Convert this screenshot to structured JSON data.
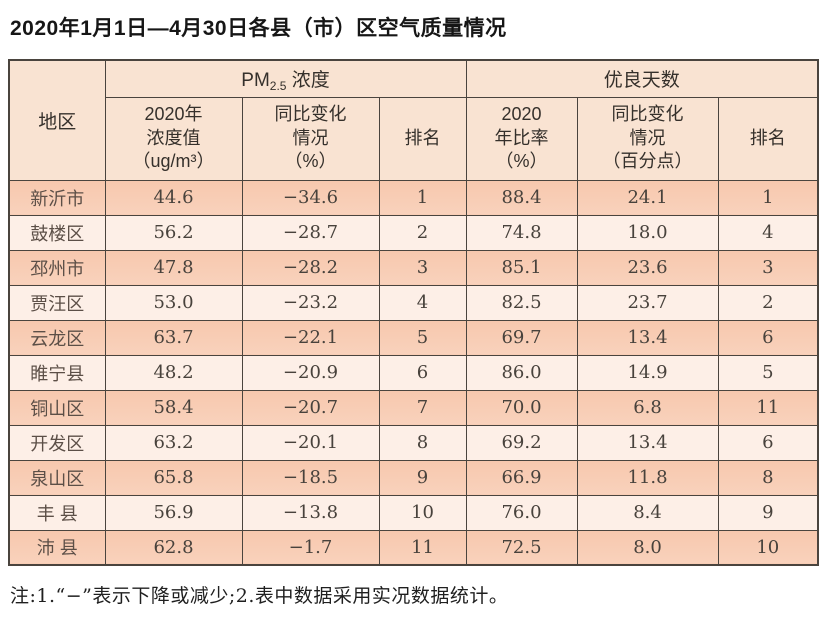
{
  "title": "2020年1月1日—4月30日各县（市）区空气质量情况",
  "colors": {
    "border_dark": "#4a443e",
    "header_bg": "#f9e3d2",
    "row_odd": "#f8ccb3",
    "row_even": "#fdefe7",
    "text_dark": "#48423c"
  },
  "table": {
    "region_header": "地区",
    "group_pm": {
      "prefix": "PM",
      "sub": "2.5",
      "suffix": " 浓度"
    },
    "group_good_days": "优良天数",
    "sub_headers": {
      "pm_value": "2020年\n浓度值\n（ug/m³）",
      "pm_change": "同比变化\n情况\n（%）",
      "pm_rank": "排名",
      "good_ratio": "2020\n年比率\n（%）",
      "good_change": "同比变化\n情况\n（百分点）",
      "good_rank": "排名"
    },
    "rows": [
      {
        "region": "新沂市",
        "pm": "44.6",
        "pm_change": "−34.6",
        "pm_rank": "1",
        "ratio": "88.4",
        "ratio_change": "24.1",
        "ratio_rank": "1"
      },
      {
        "region": "鼓楼区",
        "pm": "56.2",
        "pm_change": "−28.7",
        "pm_rank": "2",
        "ratio": "74.8",
        "ratio_change": "18.0",
        "ratio_rank": "4"
      },
      {
        "region": "邳州市",
        "pm": "47.8",
        "pm_change": "−28.2",
        "pm_rank": "3",
        "ratio": "85.1",
        "ratio_change": "23.6",
        "ratio_rank": "3"
      },
      {
        "region": "贾汪区",
        "pm": "53.0",
        "pm_change": "−23.2",
        "pm_rank": "4",
        "ratio": "82.5",
        "ratio_change": "23.7",
        "ratio_rank": "2"
      },
      {
        "region": "云龙区",
        "pm": "63.7",
        "pm_change": "−22.1",
        "pm_rank": "5",
        "ratio": "69.7",
        "ratio_change": "13.4",
        "ratio_rank": "6"
      },
      {
        "region": "睢宁县",
        "pm": "48.2",
        "pm_change": "−20.9",
        "pm_rank": "6",
        "ratio": "86.0",
        "ratio_change": "14.9",
        "ratio_rank": "5"
      },
      {
        "region": "铜山区",
        "pm": "58.4",
        "pm_change": "−20.7",
        "pm_rank": "7",
        "ratio": "70.0",
        "ratio_change": "6.8",
        "ratio_rank": "11"
      },
      {
        "region": "开发区",
        "pm": "63.2",
        "pm_change": "−20.1",
        "pm_rank": "8",
        "ratio": "69.2",
        "ratio_change": "13.4",
        "ratio_rank": "6"
      },
      {
        "region": "泉山区",
        "pm": "65.8",
        "pm_change": "−18.5",
        "pm_rank": "9",
        "ratio": "66.9",
        "ratio_change": "11.8",
        "ratio_rank": "8"
      },
      {
        "region": "丰 县",
        "pm": "56.9",
        "pm_change": "−13.8",
        "pm_rank": "10",
        "ratio": "76.0",
        "ratio_change": "8.4",
        "ratio_rank": "9"
      },
      {
        "region": "沛 县",
        "pm": "62.8",
        "pm_change": "−1.7",
        "pm_rank": "11",
        "ratio": "72.5",
        "ratio_change": "8.0",
        "ratio_rank": "10"
      }
    ]
  },
  "note": "注:1.“−”表示下降或减少;2.表中数据采用实况数据统计。"
}
